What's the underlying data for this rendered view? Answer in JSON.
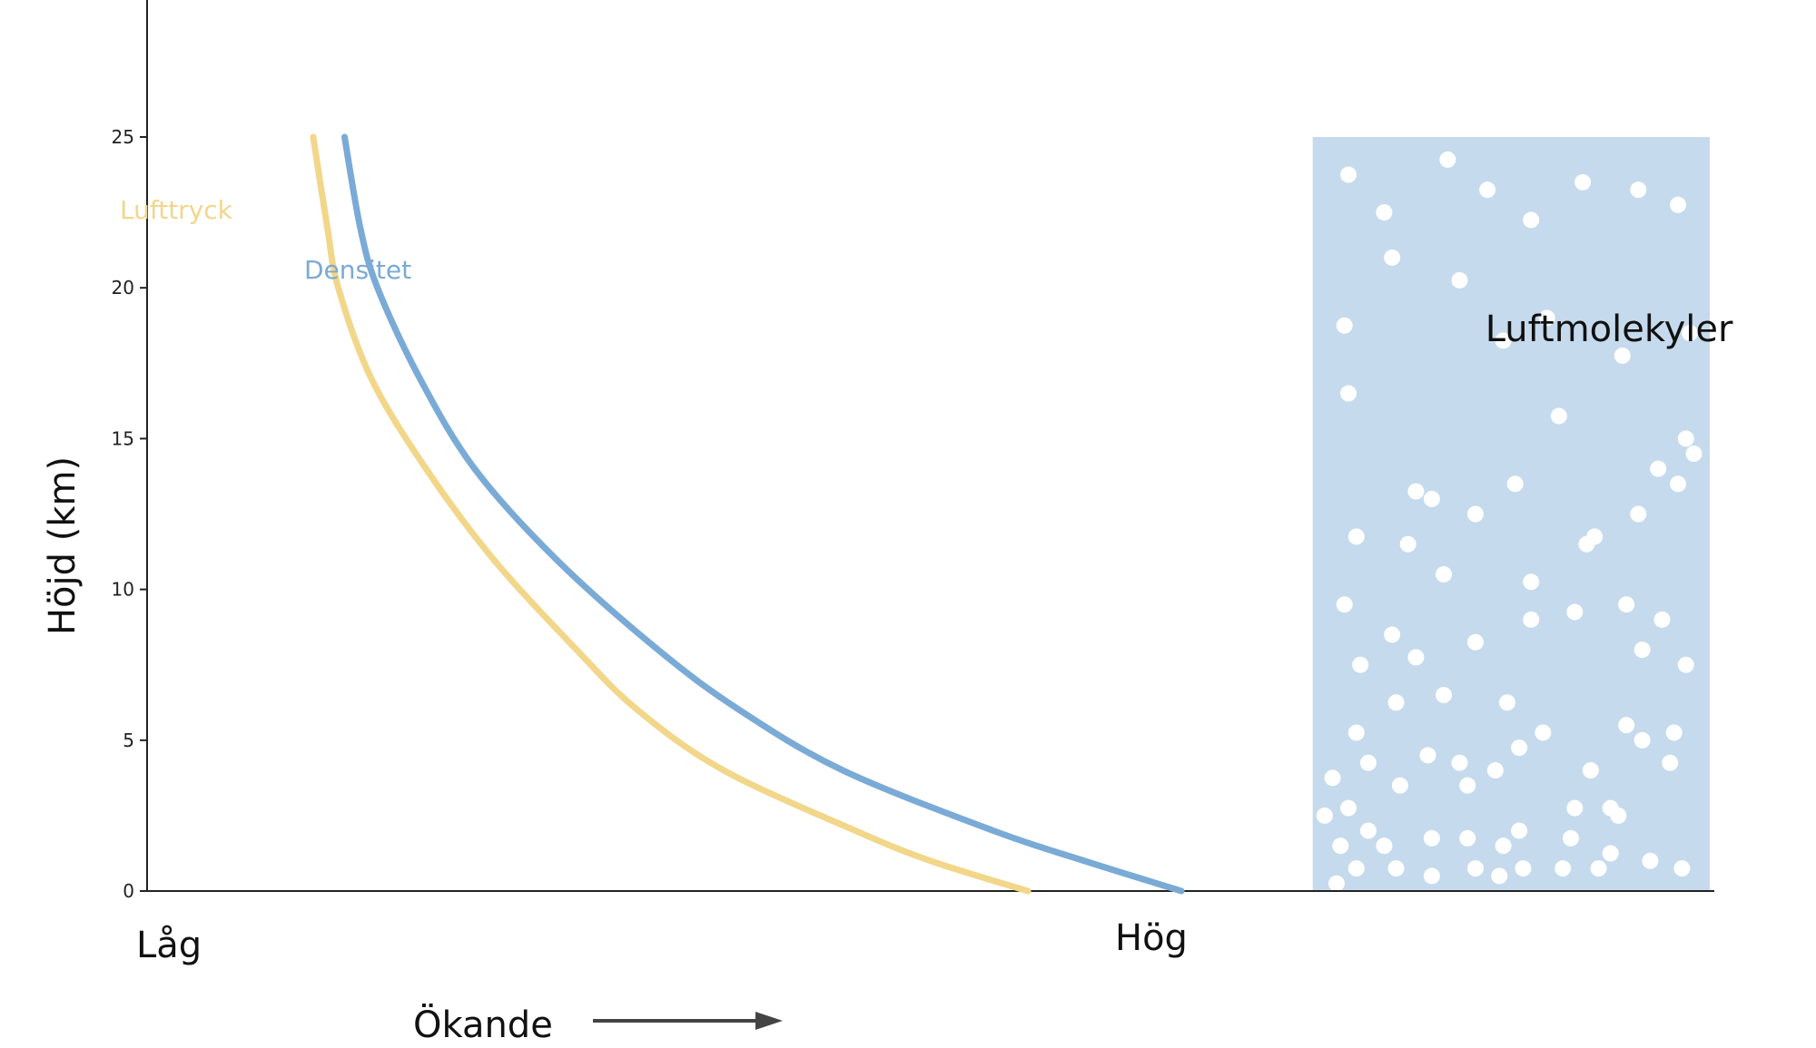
{
  "chart_data": {
    "type": "line",
    "ylabel": "Höjd (km)",
    "ylim": [
      0,
      25
    ],
    "y_ticks": [
      0,
      5,
      10,
      15,
      20,
      25
    ],
    "x_low_label": "Låg",
    "x_high_label": "Hög",
    "x_direction_label": "Ökande",
    "series": [
      {
        "name": "Lufttryck",
        "color": "#f2d68a",
        "points": [
          {
            "x": 0.106,
            "y": 25
          },
          {
            "x": 0.115,
            "y": 22
          },
          {
            "x": 0.122,
            "y": 20
          },
          {
            "x": 0.143,
            "y": 17
          },
          {
            "x": 0.178,
            "y": 14
          },
          {
            "x": 0.221,
            "y": 11
          },
          {
            "x": 0.274,
            "y": 8
          },
          {
            "x": 0.313,
            "y": 6
          },
          {
            "x": 0.368,
            "y": 4
          },
          {
            "x": 0.452,
            "y": 2
          },
          {
            "x": 0.5,
            "y": 1
          },
          {
            "x": 0.562,
            "y": 0
          }
        ]
      },
      {
        "name": "Densitet",
        "color": "#7aaad6",
        "points": [
          {
            "x": 0.126,
            "y": 25
          },
          {
            "x": 0.136,
            "y": 22
          },
          {
            "x": 0.147,
            "y": 20
          },
          {
            "x": 0.174,
            "y": 17
          },
          {
            "x": 0.209,
            "y": 14
          },
          {
            "x": 0.261,
            "y": 11
          },
          {
            "x": 0.326,
            "y": 8
          },
          {
            "x": 0.378,
            "y": 6
          },
          {
            "x": 0.444,
            "y": 4
          },
          {
            "x": 0.54,
            "y": 2
          },
          {
            "x": 0.598,
            "y": 1
          },
          {
            "x": 0.66,
            "y": 0
          }
        ]
      }
    ],
    "molecule_panel": {
      "label": "Luftmolekyler",
      "fill": "#c5daec",
      "dot_color": "#ffffff",
      "x_range": [
        0.72,
        1.0
      ],
      "y_range": [
        0,
        25
      ]
    },
    "grid": false
  }
}
